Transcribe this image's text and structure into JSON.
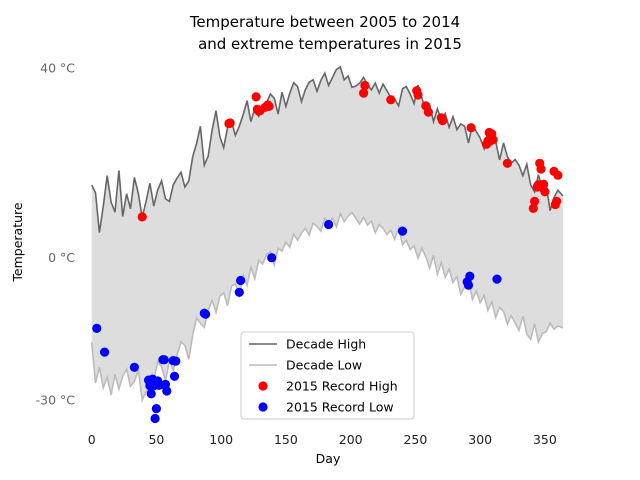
{
  "chart_data": {
    "type": "line",
    "title": [
      "Temperature between 2005 to 2014",
      "and extreme temperatures in 2015"
    ],
    "xlabel": "Day",
    "ylabel": "Temperature",
    "xlim": [
      -9,
      374
    ],
    "ylim": [
      -36,
      42
    ],
    "xticks": [
      0,
      50,
      100,
      150,
      200,
      250,
      300,
      350
    ],
    "yticks": [
      {
        "value": 40,
        "label": "40 °C"
      },
      {
        "value": 0,
        "label": "0 °C"
      },
      {
        "value": -30,
        "label": "-30 °C"
      }
    ],
    "grid": false,
    "legend_position": "lower center",
    "fill_between": {
      "color": "#dddddd"
    },
    "series": [
      {
        "name": "Decade High",
        "color": "#666666",
        "x": [
          0,
          3,
          6,
          9,
          12,
          15,
          18,
          21,
          24,
          27,
          30,
          33,
          36,
          39,
          42,
          45,
          48,
          51,
          54,
          57,
          60,
          63,
          66,
          69,
          72,
          75,
          78,
          81,
          84,
          87,
          90,
          93,
          96,
          99,
          102,
          105,
          108,
          111,
          114,
          117,
          120,
          123,
          126,
          129,
          132,
          135,
          138,
          141,
          144,
          147,
          150,
          153,
          156,
          159,
          162,
          165,
          168,
          171,
          174,
          177,
          180,
          183,
          186,
          189,
          192,
          195,
          198,
          201,
          204,
          207,
          210,
          213,
          216,
          219,
          222,
          225,
          228,
          231,
          234,
          237,
          240,
          243,
          246,
          249,
          252,
          255,
          258,
          261,
          264,
          267,
          270,
          273,
          276,
          279,
          282,
          285,
          288,
          291,
          294,
          297,
          300,
          303,
          306,
          309,
          312,
          315,
          318,
          321,
          324,
          327,
          330,
          333,
          336,
          339,
          342,
          345,
          348,
          351,
          354,
          357,
          360,
          364
        ],
        "values": [
          15.2,
          13.6,
          5.2,
          10.8,
          17.2,
          11.6,
          9.5,
          18.3,
          8.6,
          13.4,
          10.2,
          16.8,
          13.5,
          8.4,
          11.7,
          15.6,
          10.8,
          14.2,
          16.1,
          12.3,
          11.8,
          15.2,
          16.7,
          17.9,
          14.8,
          16.1,
          21.2,
          24.0,
          27.6,
          19.4,
          21.3,
          26.8,
          30.9,
          25.4,
          23.1,
          27.4,
          28.6,
          25.7,
          27.6,
          30.1,
          33.0,
          28.6,
          31.4,
          29.7,
          30.8,
          32.6,
          34.4,
          33.5,
          30.2,
          34.8,
          31.8,
          34.6,
          36.8,
          36.0,
          32.8,
          35.3,
          36.9,
          37.4,
          35.0,
          37.3,
          38.8,
          36.2,
          37.9,
          39.6,
          40.1,
          37.4,
          38.2,
          35.8,
          36.1,
          36.7,
          37.9,
          36.3,
          35.3,
          36.7,
          34.6,
          36.5,
          35.1,
          33.7,
          33.3,
          31.9,
          35.5,
          36.0,
          34.4,
          32.4,
          36.3,
          33.6,
          30.8,
          32.1,
          28.6,
          31.3,
          28.9,
          30.3,
          27.4,
          29.6,
          26.9,
          28.1,
          27.6,
          24.1,
          27.9,
          26.5,
          25.1,
          22.9,
          26.1,
          23.7,
          24.4,
          20.5,
          24.1,
          21.2,
          19.8,
          20.6,
          19.4,
          17.2,
          19.6,
          15.2,
          13.8,
          17.4,
          14.6,
          15.4,
          9.8,
          12.6,
          14.1,
          12.9
        ]
      },
      {
        "name": "Decade Low",
        "color": "#bbbbbb",
        "x": [
          0,
          3,
          6,
          9,
          12,
          15,
          18,
          21,
          24,
          27,
          30,
          33,
          36,
          39,
          42,
          45,
          48,
          51,
          54,
          57,
          60,
          63,
          66,
          69,
          72,
          75,
          78,
          81,
          84,
          87,
          90,
          93,
          96,
          99,
          102,
          105,
          108,
          111,
          114,
          117,
          120,
          123,
          126,
          129,
          132,
          135,
          138,
          141,
          144,
          147,
          150,
          153,
          156,
          159,
          162,
          165,
          168,
          171,
          174,
          177,
          180,
          183,
          186,
          189,
          192,
          195,
          198,
          201,
          204,
          207,
          210,
          213,
          216,
          219,
          222,
          225,
          228,
          231,
          234,
          237,
          240,
          243,
          246,
          249,
          252,
          255,
          258,
          261,
          264,
          267,
          270,
          273,
          276,
          279,
          282,
          285,
          288,
          291,
          294,
          297,
          300,
          303,
          306,
          309,
          312,
          315,
          318,
          321,
          324,
          327,
          330,
          333,
          336,
          339,
          342,
          345,
          348,
          351,
          354,
          357,
          360,
          364
        ],
        "values": [
          -18.0,
          -26.5,
          -23.2,
          -27.5,
          -25.3,
          -29.0,
          -24.7,
          -27.8,
          -25.1,
          -23.6,
          -27.2,
          -26.2,
          -23.8,
          -30.1,
          -28.4,
          -27.6,
          -25.8,
          -22.1,
          -23.1,
          -26.0,
          -21.9,
          -23.8,
          -20.6,
          -17.8,
          -18.6,
          -21.5,
          -16.4,
          -12.8,
          -13.9,
          -14.8,
          -11.2,
          -9.1,
          -11.6,
          -8.2,
          -7.5,
          -10.2,
          -6.1,
          -5.6,
          -8.1,
          -3.8,
          -5.9,
          -2.1,
          -4.5,
          -0.6,
          -1.4,
          0.5,
          1.2,
          -1.6,
          1.9,
          1.3,
          3.2,
          2.1,
          4.9,
          3.6,
          5.1,
          6.1,
          4.7,
          7.2,
          6.5,
          5.5,
          8.2,
          7.2,
          8.3,
          6.4,
          9.2,
          7.5,
          8.7,
          9.4,
          8.2,
          7.0,
          8.4,
          6.8,
          7.6,
          5.2,
          6.9,
          6.1,
          4.8,
          5.7,
          3.8,
          6.2,
          2.6,
          3.6,
          1.6,
          2.4,
          -0.2,
          1.9,
          0.1,
          -2.3,
          0.4,
          -3.6,
          -1.1,
          -4.2,
          -2.5,
          -5.3,
          -4.1,
          -7.8,
          -6.3,
          -4.6,
          -8.9,
          -7.1,
          -9.6,
          -8.0,
          -11.2,
          -9.4,
          -12.7,
          -10.6,
          -11.4,
          -14.1,
          -12.3,
          -13.8,
          -15.4,
          -12.4,
          -16.2,
          -17.3,
          -14.0,
          -17.9,
          -16.1,
          -15.7,
          -13.9,
          -15.2,
          -14.5,
          -14.9
        ]
      },
      {
        "name": "2015 Record High",
        "color": "#ff0000",
        "type": "scatter",
        "x": [
          39,
          106,
          107,
          127,
          128,
          129,
          130,
          134,
          136,
          137,
          210,
          211,
          231,
          251,
          252,
          258,
          260,
          270,
          271,
          293,
          305,
          306,
          307,
          308,
          309,
          310,
          321,
          341,
          342,
          344,
          345,
          346,
          347,
          348,
          349,
          350,
          357,
          358,
          359,
          360
        ],
        "y": [
          8.5,
          28.2,
          28.3,
          33.8,
          31.2,
          30.8,
          30.9,
          31.6,
          32.1,
          31.8,
          34.6,
          36.2,
          33.2,
          35.1,
          34.2,
          31.9,
          30.6,
          29.4,
          28.8,
          27.3,
          23.8,
          24.5,
          26.3,
          25.1,
          26.0,
          24.8,
          19.8,
          10.3,
          11.8,
          14.8,
          15.3,
          19.8,
          18.6,
          14.7,
          15.4,
          13.8,
          18.1,
          11.1,
          11.8,
          17.3
        ]
      },
      {
        "name": "2015 Record Low",
        "color": "#0000ff",
        "x": [
          4,
          10,
          33,
          44,
          45,
          46,
          47,
          48,
          49,
          50,
          51,
          52,
          53,
          55,
          56,
          57,
          58,
          63,
          64,
          65,
          87,
          88,
          114,
          115,
          139,
          183,
          240,
          290,
          291,
          292,
          313
        ],
        "y": [
          -15.0,
          -20.0,
          -23.2,
          -25.9,
          -27.1,
          -28.8,
          -25.7,
          -27.1,
          -34.0,
          -31.9,
          -26.1,
          -27.0,
          -26.9,
          -21.6,
          -21.6,
          -26.8,
          -28.2,
          -21.8,
          -25.1,
          -21.9,
          -11.8,
          -12.0,
          -7.4,
          -4.9,
          -0.1,
          6.9,
          5.5,
          -5.2,
          -5.9,
          -4.0,
          -4.6
        ],
        "type": "scatter"
      }
    ]
  }
}
